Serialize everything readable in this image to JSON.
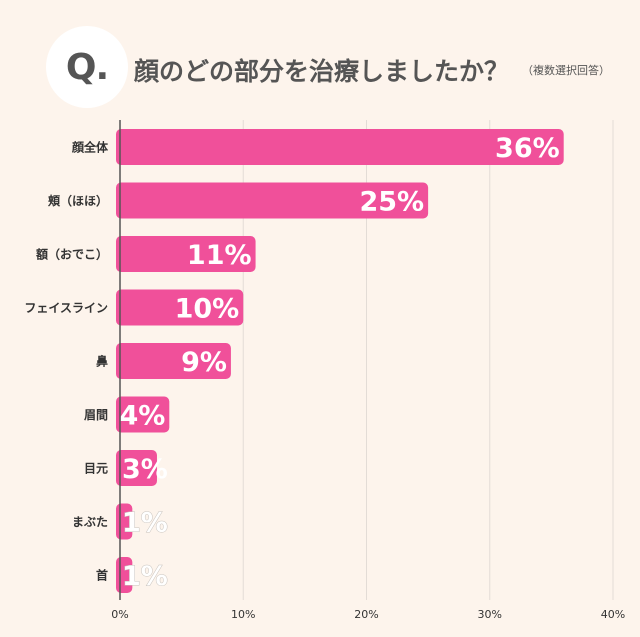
{
  "header": {
    "q_label": "Q.",
    "title": "顔のどの部分を治療しましたか？",
    "subtitle": "（複数選択回答）"
  },
  "colors": {
    "background": "#fdf4ec",
    "bar": "#f0509a",
    "grid": "#e3dcd6",
    "axis": "#555555",
    "label": "#333333",
    "value_text": "#ffffff",
    "value_outline": "#c7c2bd"
  },
  "chart_data": {
    "type": "bar",
    "orientation": "horizontal",
    "categories": [
      "顔全体",
      "頬（ほほ）",
      "額（おでこ）",
      "フェイスライン",
      "鼻",
      "眉間",
      "目元",
      "まぶた",
      "首"
    ],
    "values": [
      36,
      25,
      11,
      10,
      9,
      4,
      3,
      1,
      1
    ],
    "value_labels": [
      "36%",
      "25%",
      "11%",
      "10%",
      "9%",
      "4%",
      "3%",
      "1%",
      "1%"
    ],
    "x_ticks": [
      "0%",
      "10%",
      "20%",
      "30%",
      "40%"
    ],
    "xlim": [
      0,
      40
    ],
    "grid": true,
    "legend": "none"
  }
}
